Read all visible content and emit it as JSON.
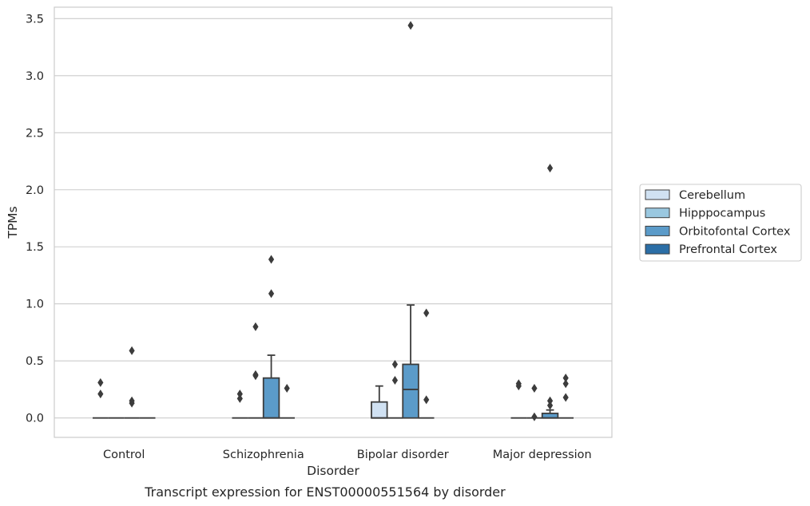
{
  "chart_data": {
    "type": "box",
    "caption": "Transcript expression for ENST00000551564 by disorder",
    "xlabel": "Disorder",
    "ylabel": "TPMs",
    "ylim": [
      -0.17,
      3.6
    ],
    "yticks": [
      "0.0",
      "0.5",
      "1.0",
      "1.5",
      "2.0",
      "2.5",
      "3.0",
      "3.5"
    ],
    "grid": true,
    "legend_position": "right",
    "categories": [
      "Control",
      "Schizophrenia",
      "Bipolar disorder",
      "Major depression"
    ],
    "series": [
      {
        "name": "Cerebellum",
        "color": "#d0e1f2",
        "boxes": [
          {
            "q1": 0,
            "median": 0,
            "q3": 0,
            "whisker_low": 0,
            "whisker_high": 0,
            "outliers": [
              0.31,
              0.21
            ]
          },
          {
            "q1": 0,
            "median": 0,
            "q3": 0,
            "whisker_low": 0,
            "whisker_high": 0,
            "outliers": [
              0.21,
              0.17
            ]
          },
          {
            "q1": 0,
            "median": 0,
            "q3": 0.14,
            "whisker_low": 0,
            "whisker_high": 0.28,
            "outliers": []
          },
          {
            "q1": 0,
            "median": 0,
            "q3": 0,
            "whisker_low": 0,
            "whisker_high": 0,
            "outliers": [
              0.3,
              0.28
            ]
          }
        ]
      },
      {
        "name": "Hipppocampus",
        "color": "#9ac8e0",
        "boxes": [
          {
            "q1": 0,
            "median": 0,
            "q3": 0,
            "whisker_low": 0,
            "whisker_high": 0,
            "outliers": []
          },
          {
            "q1": 0,
            "median": 0,
            "q3": 0,
            "whisker_low": 0,
            "whisker_high": 0,
            "outliers": [
              0.8,
              0.38,
              0.37
            ]
          },
          {
            "q1": 0,
            "median": 0,
            "q3": 0,
            "whisker_low": 0,
            "whisker_high": 0,
            "outliers": [
              0.47,
              0.33
            ]
          },
          {
            "q1": 0,
            "median": 0,
            "q3": 0,
            "whisker_low": 0,
            "whisker_high": 0,
            "outliers": [
              0.26,
              0.01
            ]
          }
        ]
      },
      {
        "name": "Orbitofontal Cortex",
        "color": "#5b9bc9",
        "boxes": [
          {
            "q1": 0,
            "median": 0,
            "q3": 0,
            "whisker_low": 0,
            "whisker_high": 0,
            "outliers": [
              0.59,
              0.15,
              0.13
            ]
          },
          {
            "q1": 0,
            "median": 0,
            "q3": 0.35,
            "whisker_low": 0,
            "whisker_high": 0.55,
            "outliers": [
              1.39,
              1.09
            ]
          },
          {
            "q1": 0,
            "median": 0.25,
            "q3": 0.47,
            "whisker_low": 0,
            "whisker_high": 0.99,
            "outliers": [
              3.44
            ]
          },
          {
            "q1": 0,
            "median": 0,
            "q3": 0.04,
            "whisker_low": 0,
            "whisker_high": 0.07,
            "outliers": [
              2.19,
              0.15,
              0.11
            ]
          }
        ]
      },
      {
        "name": "Prefrontal Cortex",
        "color": "#2b6ea6",
        "boxes": [
          {
            "q1": 0,
            "median": 0,
            "q3": 0,
            "whisker_low": 0,
            "whisker_high": 0,
            "outliers": []
          },
          {
            "q1": 0,
            "median": 0,
            "q3": 0,
            "whisker_low": 0,
            "whisker_high": 0,
            "outliers": [
              0.26
            ]
          },
          {
            "q1": 0,
            "median": 0,
            "q3": 0,
            "whisker_low": 0,
            "whisker_high": 0,
            "outliers": [
              0.92,
              0.16
            ]
          },
          {
            "q1": 0,
            "median": 0,
            "q3": 0,
            "whisker_low": 0,
            "whisker_high": 0,
            "outliers": [
              0.35,
              0.3,
              0.18
            ]
          }
        ]
      }
    ]
  }
}
